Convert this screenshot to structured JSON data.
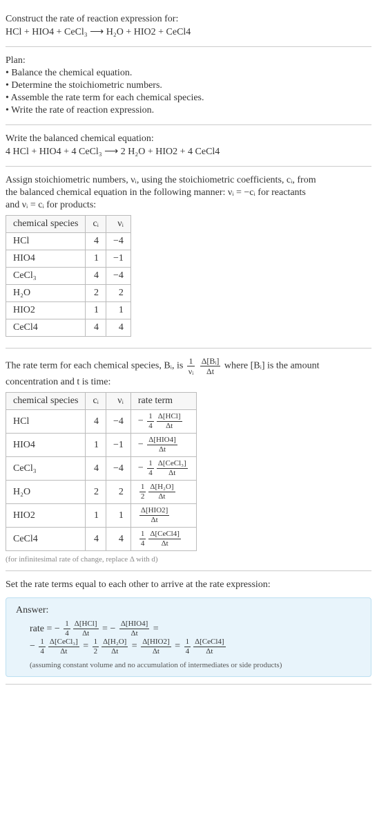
{
  "intro": {
    "line1": "Construct the rate of reaction expression for:",
    "equation": "HCl + HIO4 + CeCl₃ ⟶ H₂O + HIO2 + CeCl4"
  },
  "plan": {
    "heading": "Plan:",
    "items": [
      "• Balance the chemical equation.",
      "• Determine the stoichiometric numbers.",
      "• Assemble the rate term for each chemical species.",
      "• Write the rate of reaction expression."
    ]
  },
  "balanced": {
    "heading": "Write the balanced chemical equation:",
    "equation": "4 HCl + HIO4 + 4 CeCl₃ ⟶ 2 H₂O + HIO2 + 4 CeCl4"
  },
  "stoich": {
    "intro1": "Assign stoichiometric numbers, νᵢ, using the stoichiometric coefficients, cᵢ, from",
    "intro2": "the balanced chemical equation in the following manner: νᵢ = −cᵢ for reactants",
    "intro3": "and νᵢ = cᵢ for products:",
    "headers": [
      "chemical species",
      "cᵢ",
      "νᵢ"
    ],
    "rows": [
      [
        "HCl",
        "4",
        "−4"
      ],
      [
        "HIO4",
        "1",
        "−1"
      ],
      [
        "CeCl₃",
        "4",
        "−4"
      ],
      [
        "H₂O",
        "2",
        "2"
      ],
      [
        "HIO2",
        "1",
        "1"
      ],
      [
        "CeCl4",
        "4",
        "4"
      ]
    ]
  },
  "rateterm": {
    "intro_prefix": "The rate term for each chemical species, Bᵢ, is ",
    "frac1_num": "1",
    "frac1_den": "νᵢ",
    "frac2_num": "Δ[Bᵢ]",
    "frac2_den": "Δt",
    "intro_suffix": " where [Bᵢ] is the amount",
    "intro_line2": "concentration and t is time:",
    "headers": [
      "chemical species",
      "cᵢ",
      "νᵢ",
      "rate term"
    ],
    "rows": [
      {
        "species": "HCl",
        "c": "4",
        "v": "−4",
        "sign": "−",
        "fnum": "1",
        "fden": "4",
        "dnum": "Δ[HCl]",
        "dden": "Δt"
      },
      {
        "species": "HIO4",
        "c": "1",
        "v": "−1",
        "sign": "−",
        "fnum": "",
        "fden": "",
        "dnum": "Δ[HIO4]",
        "dden": "Δt"
      },
      {
        "species": "CeCl₃",
        "c": "4",
        "v": "−4",
        "sign": "−",
        "fnum": "1",
        "fden": "4",
        "dnum": "Δ[CeCl₃]",
        "dden": "Δt"
      },
      {
        "species": "H₂O",
        "c": "2",
        "v": "2",
        "sign": "",
        "fnum": "1",
        "fden": "2",
        "dnum": "Δ[H₂O]",
        "dden": "Δt"
      },
      {
        "species": "HIO2",
        "c": "1",
        "v": "1",
        "sign": "",
        "fnum": "",
        "fden": "",
        "dnum": "Δ[HIO2]",
        "dden": "Δt"
      },
      {
        "species": "CeCl4",
        "c": "4",
        "v": "4",
        "sign": "",
        "fnum": "1",
        "fden": "4",
        "dnum": "Δ[CeCl4]",
        "dden": "Δt"
      }
    ],
    "footnote": "(for infinitesimal rate of change, replace Δ with d)"
  },
  "final": {
    "heading": "Set the rate terms equal to each other to arrive at the rate expression:",
    "answer_label": "Answer:",
    "rate_prefix": "rate = ",
    "terms": [
      {
        "sign": "−",
        "fnum": "1",
        "fden": "4",
        "dnum": "Δ[HCl]",
        "dden": "Δt",
        "after": " = "
      },
      {
        "sign": "−",
        "fnum": "",
        "fden": "",
        "dnum": "Δ[HIO4]",
        "dden": "Δt",
        "after": " ="
      },
      {
        "break": true
      },
      {
        "sign": "−",
        "fnum": "1",
        "fden": "4",
        "dnum": "Δ[CeCl₃]",
        "dden": "Δt",
        "after": " = "
      },
      {
        "sign": "",
        "fnum": "1",
        "fden": "2",
        "dnum": "Δ[H₂O]",
        "dden": "Δt",
        "after": " = "
      },
      {
        "sign": "",
        "fnum": "",
        "fden": "",
        "dnum": "Δ[HIO2]",
        "dden": "Δt",
        "after": " = "
      },
      {
        "sign": "",
        "fnum": "1",
        "fden": "4",
        "dnum": "Δ[CeCl4]",
        "dden": "Δt",
        "after": ""
      }
    ],
    "footnote": "(assuming constant volume and no accumulation of intermediates or side products)"
  },
  "colors": {
    "answer_bg": "#e8f4fb",
    "answer_border": "#bcdff1"
  }
}
